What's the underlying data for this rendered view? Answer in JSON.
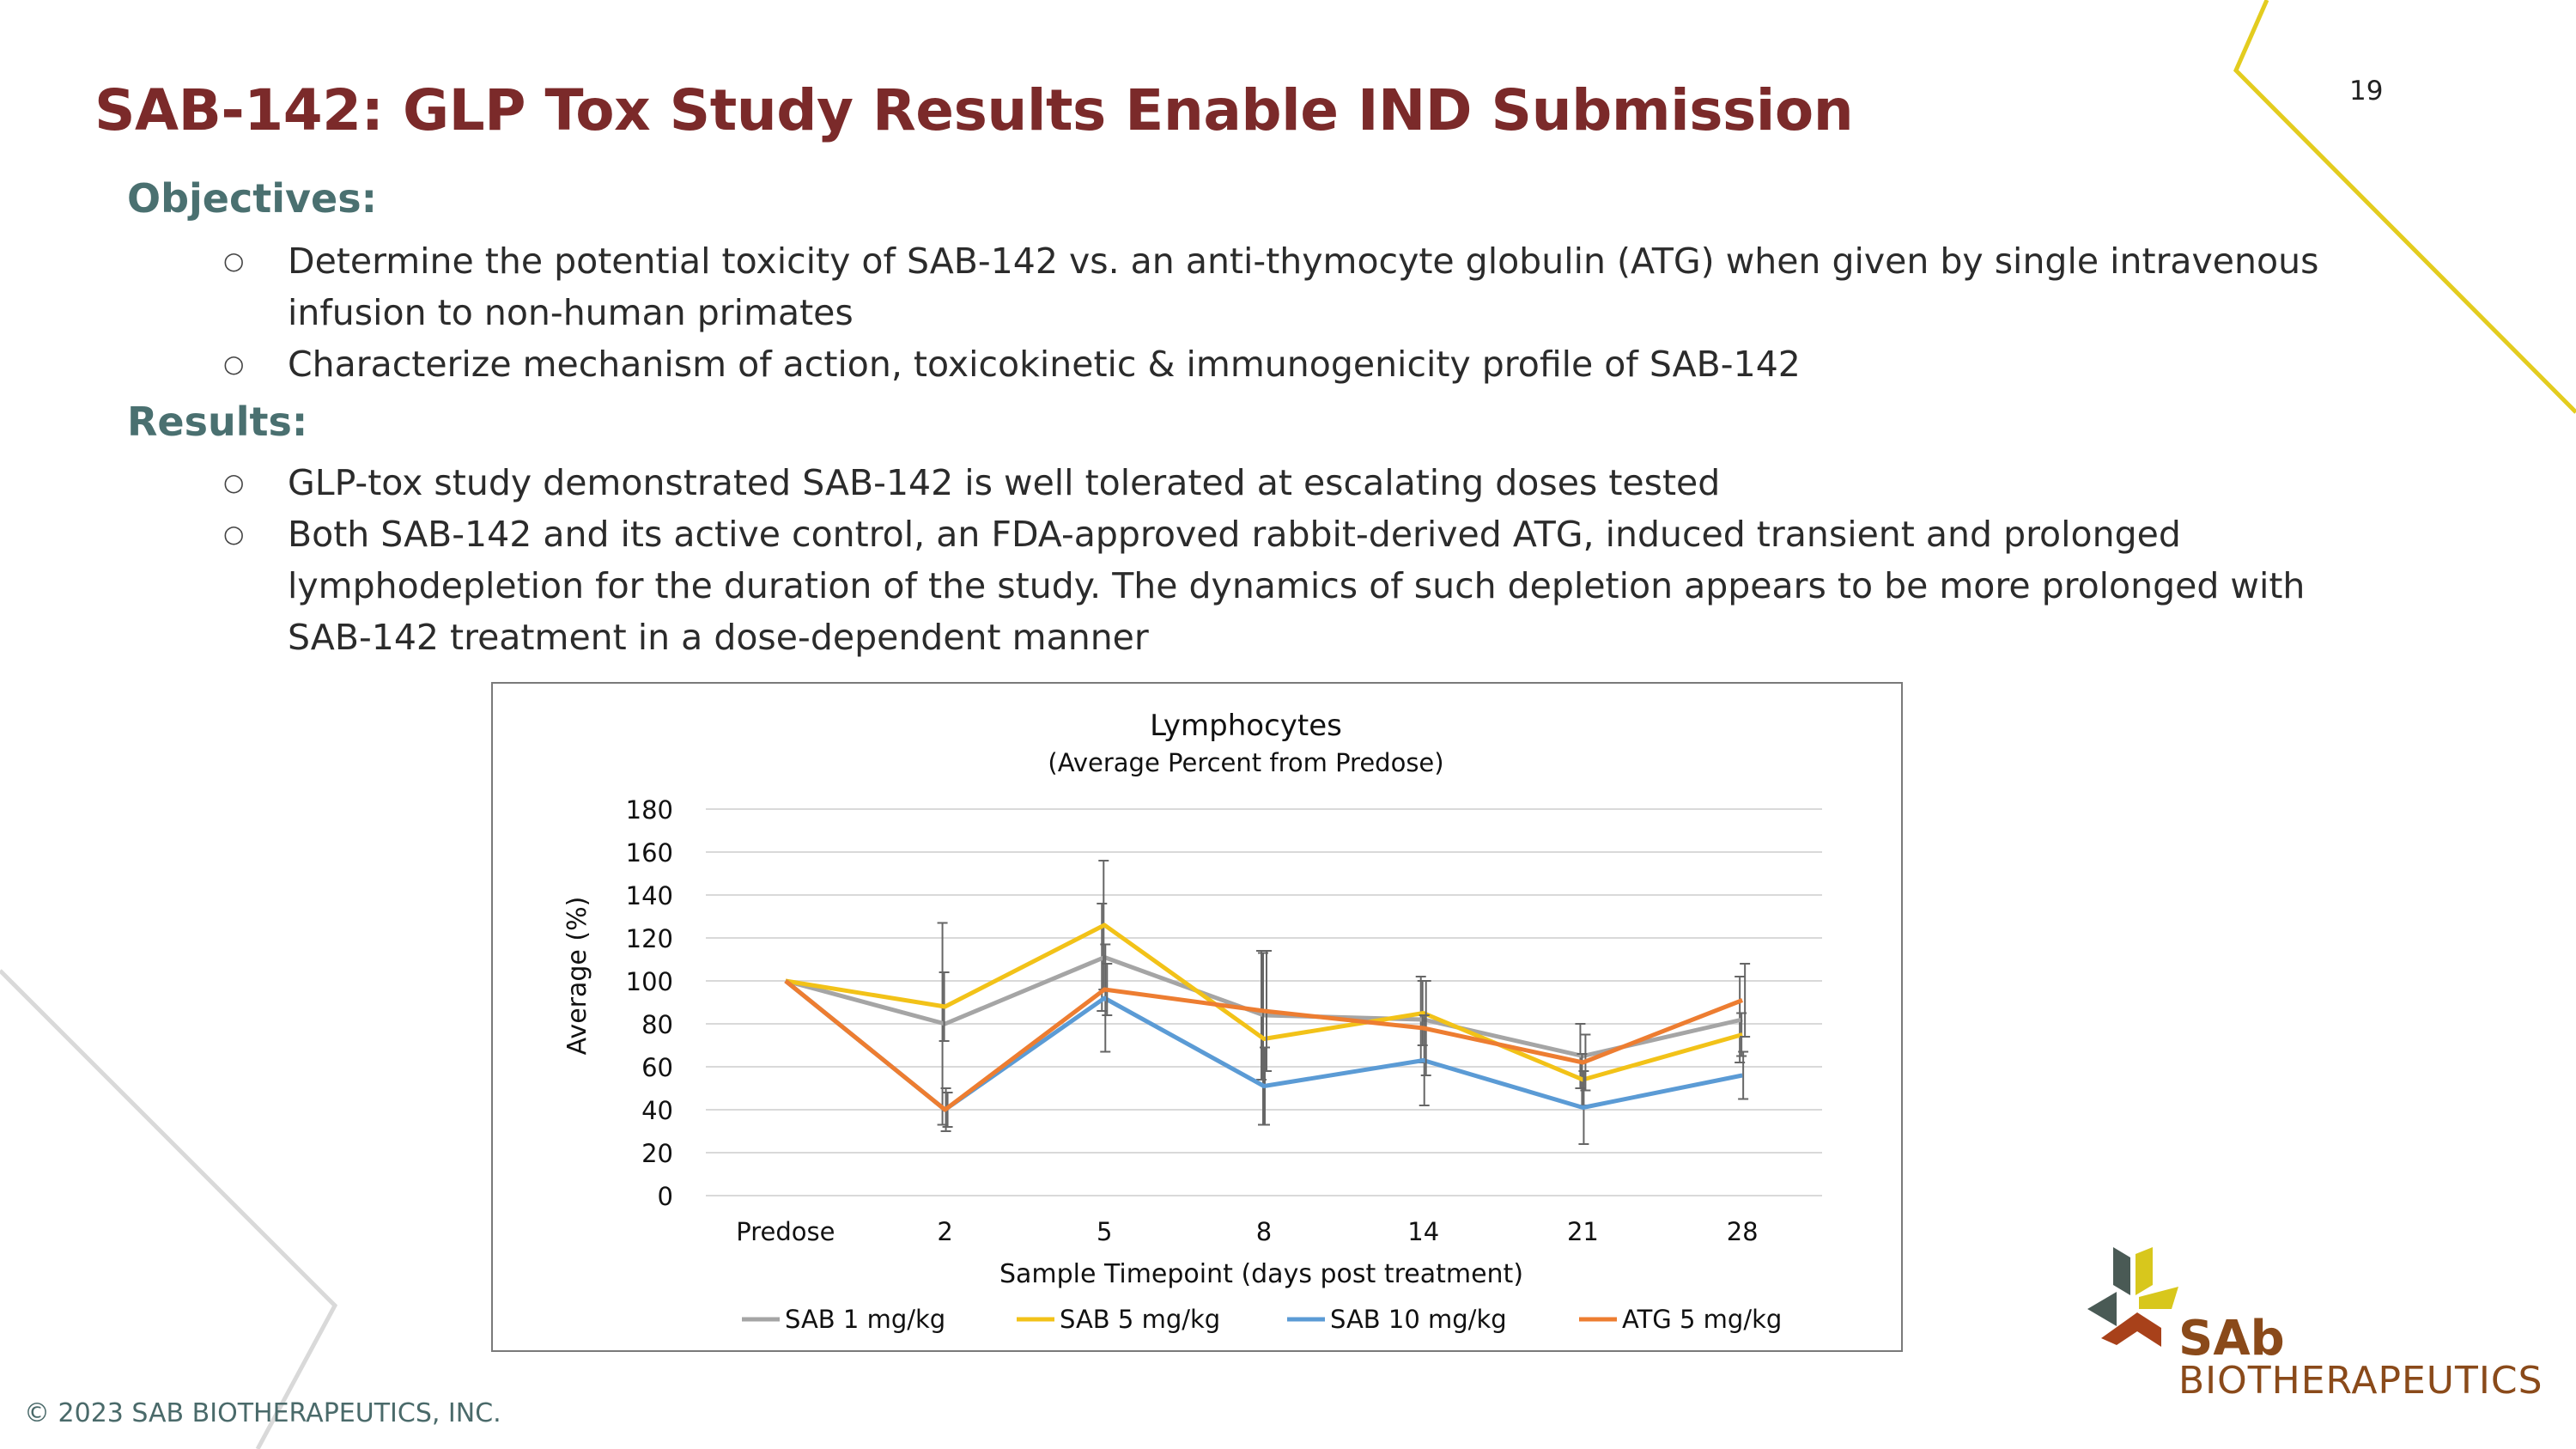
{
  "slide": {
    "title": "SAB-142: GLP Tox Study Results Enable IND Submission",
    "page_number": "19"
  },
  "objectives": {
    "heading": "Objectives:",
    "items": [
      "Determine the potential toxicity of SAB-142 vs. an anti-thymocyte globulin (ATG) when given by single intravenous infusion to non-human primates",
      "Characterize mechanism of action, toxicokinetic & immunogenicity profile of SAB-142"
    ]
  },
  "results": {
    "heading": "Results:",
    "items": [
      "GLP-tox study demonstrated SAB-142 is well tolerated at escalating doses tested",
      "Both SAB-142 and its active control, an FDA-approved rabbit-derived ATG, induced transient and prolonged lymphodepletion for the duration of the study. The dynamics of such depletion appears to be more prolonged with SAB-142 treatment in a dose-dependent manner"
    ]
  },
  "chart_data": {
    "type": "line",
    "title": "Lymphocytes",
    "subtitle": "(Average Percent from Predose)",
    "xlabel": "Sample Timepoint (days post treatment)",
    "ylabel": "Average (%)",
    "categories": [
      "Predose",
      "2",
      "5",
      "8",
      "14",
      "21",
      "28"
    ],
    "ylim": [
      0,
      180
    ],
    "yticks": [
      0,
      20,
      40,
      60,
      80,
      100,
      120,
      140,
      160,
      180
    ],
    "grid": true,
    "legend_position": "bottom",
    "series": [
      {
        "name": "SAB 1 mg/kg",
        "color": "#a5a5a5",
        "values": [
          100,
          80,
          111,
          84,
          82,
          65,
          82
        ],
        "errors": [
          0,
          47,
          25,
          30,
          20,
          15,
          20
        ]
      },
      {
        "name": "SAB 5 mg/kg",
        "color": "#f2c218",
        "values": [
          100,
          88,
          126,
          73,
          85,
          54,
          75
        ],
        "errors": [
          0,
          16,
          30,
          40,
          15,
          12,
          10
        ]
      },
      {
        "name": "SAB 10 mg/kg",
        "color": "#5b9bd5",
        "values": [
          100,
          40,
          92,
          51,
          63,
          41,
          56
        ],
        "errors": [
          0,
          10,
          25,
          18,
          21,
          17,
          11
        ]
      },
      {
        "name": "ATG 5 mg/kg",
        "color": "#ed7d31",
        "values": [
          100,
          40,
          96,
          86,
          78,
          62,
          91
        ],
        "errors": [
          0,
          8,
          12,
          28,
          22,
          13,
          17
        ]
      }
    ]
  },
  "footer": {
    "copyright": "© 2023 SAB BIOTHERAPEUTICS, INC."
  },
  "logo": {
    "wordmark": "SAb",
    "subtitle": "BIOTHERAPEUTICS"
  },
  "colors": {
    "title": "#7b2a2a",
    "heading": "#4a7070",
    "accent_yellow": "#e8cf1a",
    "logo_brown": "#8a4a1a"
  }
}
